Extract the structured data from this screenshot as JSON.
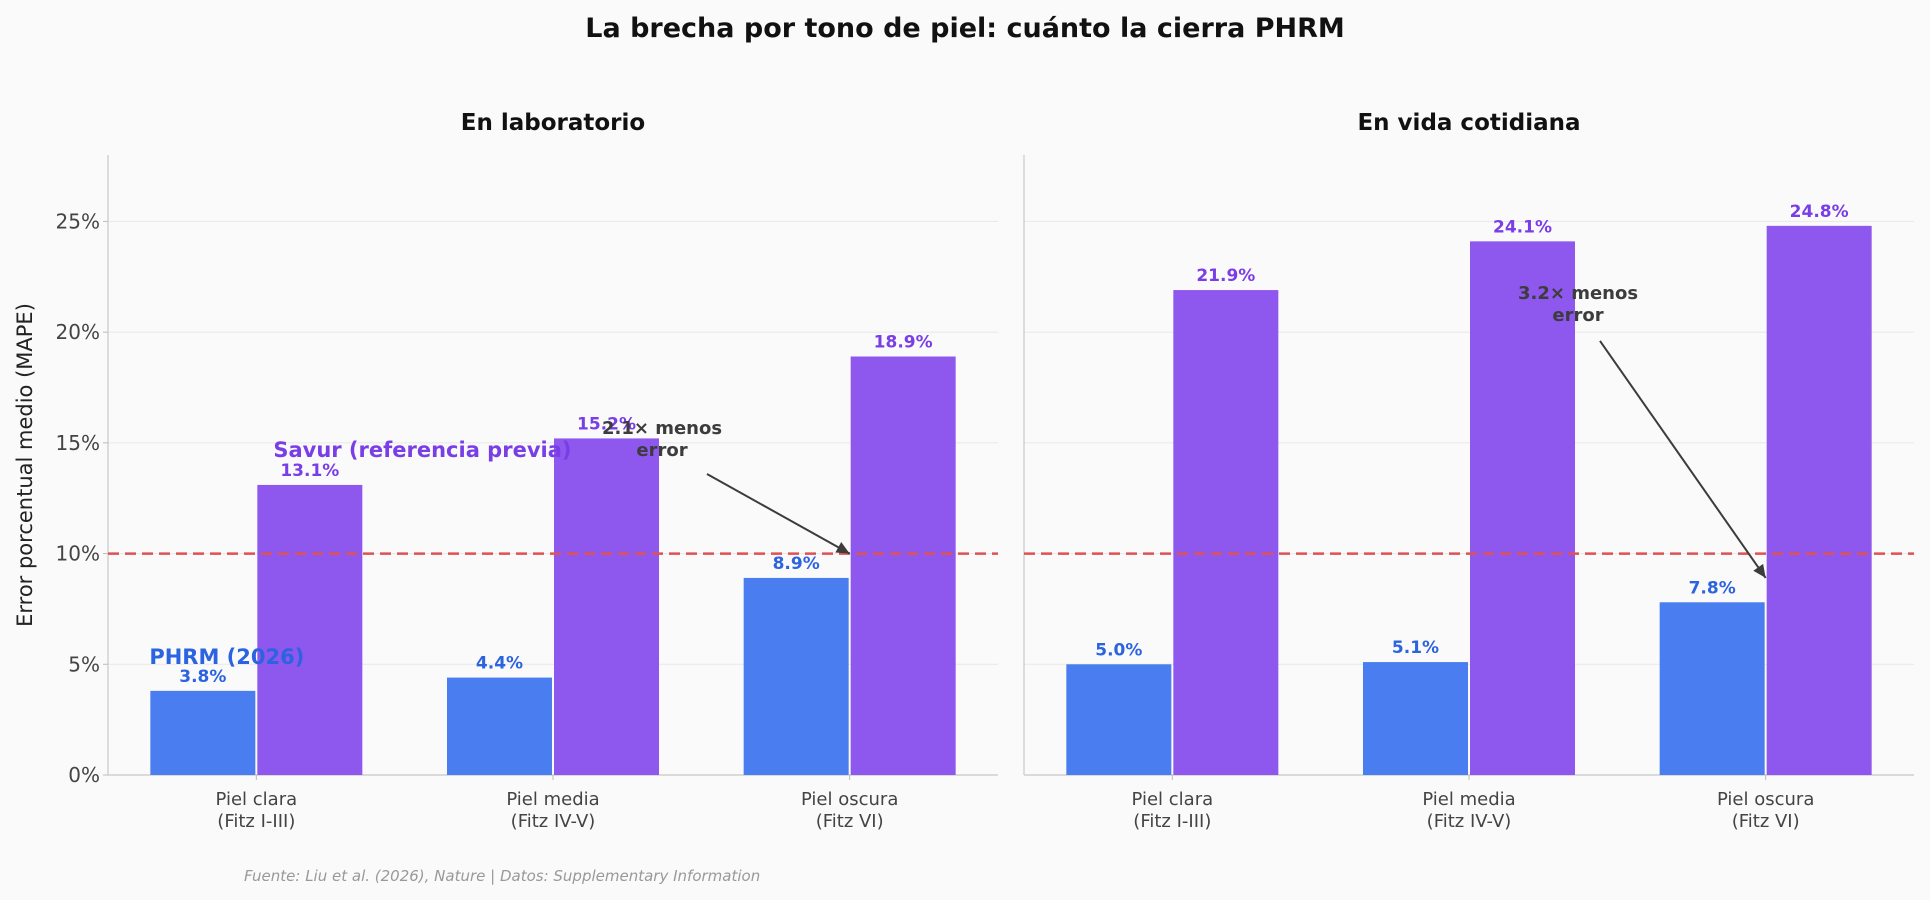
{
  "figure": {
    "title": "La brecha por tono de piel: cuánto la cierra PHRM",
    "source": "Fuente: Liu et al. (2026), Nature | Datos: Supplementary Information",
    "ylabel": "Error porcentual medio (MAPE)"
  },
  "colors": {
    "phrm": "#4a7ef0",
    "phrm_text": "#2b63e0",
    "savur": "#8e57ee",
    "savur_text": "#7a3ee6",
    "threshold": "#e05252",
    "annotation": "#3c3c3c"
  },
  "chart_data": [
    {
      "type": "bar",
      "title": "En laboratorio",
      "categories": [
        "Piel clara\n(Fitz I-III)",
        "Piel media\n(Fitz IV-V)",
        "Piel oscura\n(Fitz VI)"
      ],
      "series": [
        {
          "name": "PHRM (2026)",
          "values": [
            3.8,
            4.4,
            8.9
          ],
          "labels": [
            "3.8%",
            "4.4%",
            "8.9%"
          ]
        },
        {
          "name": "Savur (referencia previa)",
          "values": [
            13.1,
            15.2,
            18.9
          ],
          "labels": [
            "13.1%",
            "15.2%",
            "18.9%"
          ]
        }
      ],
      "ylabel": "Error porcentual medio (MAPE)",
      "ylim": [
        0,
        28
      ],
      "yticks": [
        0,
        5,
        10,
        15,
        20,
        25
      ],
      "ytick_labels": [
        "0%",
        "5%",
        "10%",
        "15%",
        "20%",
        "25%"
      ],
      "threshold": 10,
      "annotation": {
        "text": "2.1× menos\nerror",
        "target_category": 2,
        "target_value": 10.0,
        "text_category": 1.3,
        "text_value": 15.4
      },
      "legend_labels": true
    },
    {
      "type": "bar",
      "title": "En vida cotidiana",
      "categories": [
        "Piel clara\n(Fitz I-III)",
        "Piel media\n(Fitz IV-V)",
        "Piel oscura\n(Fitz VI)"
      ],
      "series": [
        {
          "name": "PHRM (2026)",
          "values": [
            5.0,
            5.1,
            7.8
          ],
          "labels": [
            "5.0%",
            "5.1%",
            "7.8%"
          ]
        },
        {
          "name": "Savur (referencia previa)",
          "values": [
            21.9,
            24.1,
            24.8
          ],
          "labels": [
            "21.9%",
            "24.1%",
            "24.8%"
          ]
        }
      ],
      "ylim": [
        0,
        28
      ],
      "yticks": [
        0,
        5,
        10,
        15,
        20,
        25
      ],
      "threshold": 10,
      "annotation": {
        "text": "3.2× menos\nerror",
        "target_category": 2,
        "target_value": 8.9,
        "text_category": 1.3,
        "text_value": 21.5
      },
      "legend_labels": false
    }
  ]
}
